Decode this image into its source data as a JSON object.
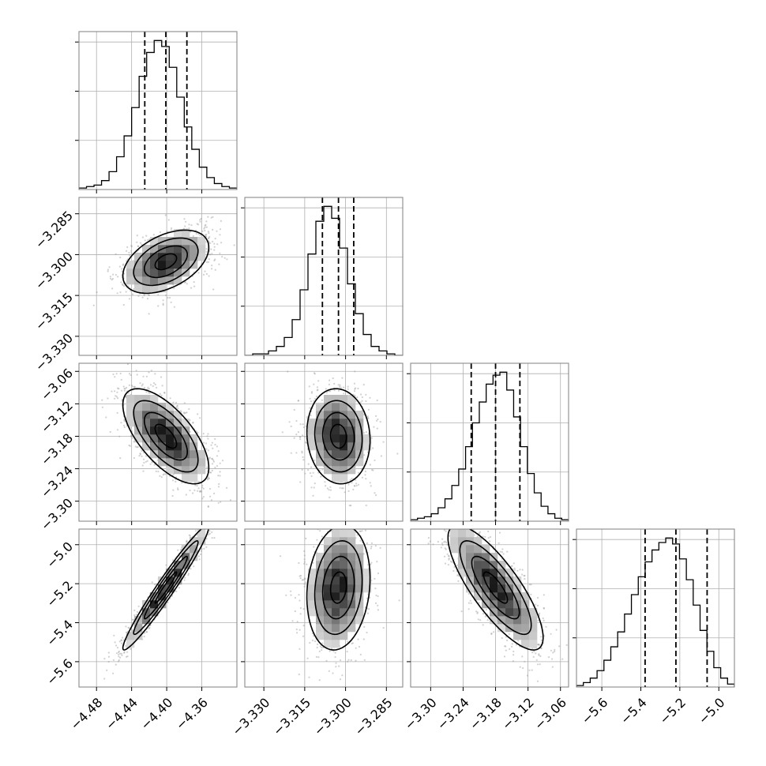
{
  "chart_data": {
    "type": "corner",
    "grid": true,
    "parameters": [
      {
        "range": [
          -4.5,
          -4.32
        ],
        "ticks": [
          -4.48,
          -4.44,
          -4.4,
          -4.36
        ],
        "tick_labels": [
          "−4.48",
          "−4.44",
          "−4.40",
          "−4.36"
        ],
        "mean": -4.401,
        "std": 0.0245,
        "quantiles": [
          -4.425,
          -4.401,
          -4.377
        ],
        "hist": [
          1,
          2,
          3,
          6,
          12,
          22,
          36,
          55,
          76,
          92,
          100,
          96,
          82,
          62,
          42,
          27,
          15,
          8,
          4,
          2,
          1
        ]
      },
      {
        "range": [
          -3.337,
          -3.279
        ],
        "ticks": [
          -3.33,
          -3.315,
          -3.3,
          -3.285
        ],
        "tick_labels": [
          "−3.330",
          "−3.315",
          "−3.300",
          "−3.285"
        ],
        "mean": -3.3026,
        "std": 0.0058,
        "quantiles": [
          -3.3085,
          -3.3026,
          -3.297
        ],
        "hist": [
          0,
          1,
          1,
          3,
          6,
          12,
          24,
          44,
          68,
          90,
          100,
          92,
          72,
          48,
          28,
          14,
          6,
          3,
          1,
          0
        ]
      },
      {
        "range": [
          -3.337,
          -3.045
        ],
        "ticks": [
          -3.3,
          -3.24,
          -3.18,
          -3.12,
          -3.06
        ],
        "tick_labels": [
          "−3.30",
          "−3.24",
          "−3.18",
          "−3.12",
          "−3.06"
        ],
        "mean": -3.18,
        "std": 0.044,
        "quantiles": [
          -3.225,
          -3.18,
          -3.135
        ],
        "hist": [
          1,
          2,
          3,
          5,
          9,
          15,
          24,
          35,
          50,
          66,
          80,
          92,
          98,
          100,
          88,
          70,
          50,
          32,
          19,
          10,
          5,
          2,
          1
        ]
      },
      {
        "range": [
          -5.73,
          -4.92
        ],
        "ticks": [
          -5.6,
          -5.4,
          -5.2,
          -5.0
        ],
        "tick_labels": [
          "−5.6",
          "−5.4",
          "−5.2",
          "−5.0"
        ],
        "mean": -5.22,
        "std": 0.16,
        "quantiles": [
          -5.378,
          -5.22,
          -5.06
        ],
        "hist": [
          1,
          3,
          6,
          11,
          18,
          27,
          37,
          49,
          62,
          74,
          84,
          92,
          97,
          100,
          96,
          86,
          72,
          55,
          38,
          24,
          13,
          6,
          2
        ]
      }
    ],
    "correlations": [
      [
        1.0,
        0.45,
        -0.66,
        0.97
      ],
      [
        0.45,
        1.0,
        -0.08,
        0.15
      ],
      [
        -0.66,
        -0.08,
        1.0,
        -0.8
      ],
      [
        0.97,
        0.15,
        -0.8,
        1.0
      ]
    ],
    "contour_levels_sigma": [
      0.5,
      1.0,
      1.5,
      2.0
    ]
  }
}
